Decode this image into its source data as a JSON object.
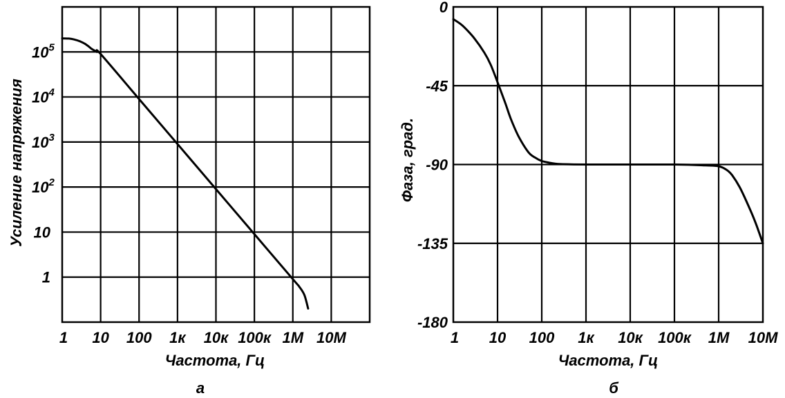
{
  "chart_data": [
    {
      "id": "gain",
      "type": "line",
      "scale": "log-log",
      "sublabel": "а",
      "xlabel": "Частота, Гц",
      "ylabel": "Усиление напряжения",
      "xlim": [
        1,
        100000000
      ],
      "ylim": [
        0.1,
        1000000
      ],
      "grid": true,
      "x_ticks": [
        {
          "value": 1,
          "label": "1"
        },
        {
          "value": 10,
          "label": "10"
        },
        {
          "value": 100,
          "label": "100"
        },
        {
          "value": 1000,
          "label": "1к"
        },
        {
          "value": 10000,
          "label": "10к"
        },
        {
          "value": 100000,
          "label": "100к"
        },
        {
          "value": 1000000,
          "label": "1М"
        },
        {
          "value": 10000000,
          "label": "10М"
        }
      ],
      "y_ticks": [
        {
          "value": 100000,
          "base": "10",
          "exp": "5"
        },
        {
          "value": 10000,
          "base": "10",
          "exp": "4"
        },
        {
          "value": 1000,
          "base": "10",
          "exp": "3"
        },
        {
          "value": 100,
          "base": "10",
          "exp": "2"
        },
        {
          "value": 10,
          "base": "10",
          "exp": ""
        },
        {
          "value": 1,
          "base": "1",
          "exp": ""
        }
      ],
      "series": [
        {
          "x": [
            1,
            1.5,
            2,
            3,
            4,
            5,
            6,
            8,
            10,
            100,
            1000,
            10000,
            100000,
            1000000,
            1500000,
            2000000,
            2500000
          ],
          "y": [
            200000,
            198000,
            190000,
            170000,
            150000,
            130000,
            115000,
            100000,
            90000,
            9000,
            900,
            90,
            9,
            0.9,
            0.6,
            0.4,
            0.2
          ]
        }
      ]
    },
    {
      "id": "phase",
      "type": "line",
      "scale": "semilog-x",
      "sublabel": "б",
      "xlabel": "Частота, Гц",
      "ylabel": "Фаза, град.",
      "xlim": [
        1,
        10000000
      ],
      "ylim": [
        -180,
        0
      ],
      "grid": true,
      "x_ticks": [
        {
          "value": 1,
          "label": "1"
        },
        {
          "value": 10,
          "label": "10"
        },
        {
          "value": 100,
          "label": "100"
        },
        {
          "value": 1000,
          "label": "1к"
        },
        {
          "value": 10000,
          "label": "10к"
        },
        {
          "value": 100000,
          "label": "100к"
        },
        {
          "value": 1000000,
          "label": "1М"
        },
        {
          "value": 10000000,
          "label": "10М"
        }
      ],
      "y_ticks": [
        {
          "value": 0,
          "label": "0"
        },
        {
          "value": -45,
          "label": "-45"
        },
        {
          "value": -90,
          "label": "-90"
        },
        {
          "value": -135,
          "label": "-135"
        },
        {
          "value": -180,
          "label": "-180"
        }
      ],
      "series": [
        {
          "x": [
            1,
            1.5,
            2,
            3,
            5,
            7,
            10,
            15,
            20,
            30,
            50,
            70,
            100,
            150,
            200,
            300,
            1000,
            10000,
            100000,
            500000,
            1000000,
            1500000,
            2000000,
            3000000,
            5000000,
            7000000,
            10000000
          ],
          "y": [
            -7,
            -10,
            -13,
            -18,
            -26,
            -33,
            -43,
            -55,
            -64,
            -74,
            -83,
            -86,
            -88,
            -89,
            -89.5,
            -89.8,
            -90,
            -90,
            -90,
            -90.5,
            -91,
            -93,
            -96,
            -103,
            -115,
            -124,
            -135
          ]
        }
      ]
    }
  ]
}
